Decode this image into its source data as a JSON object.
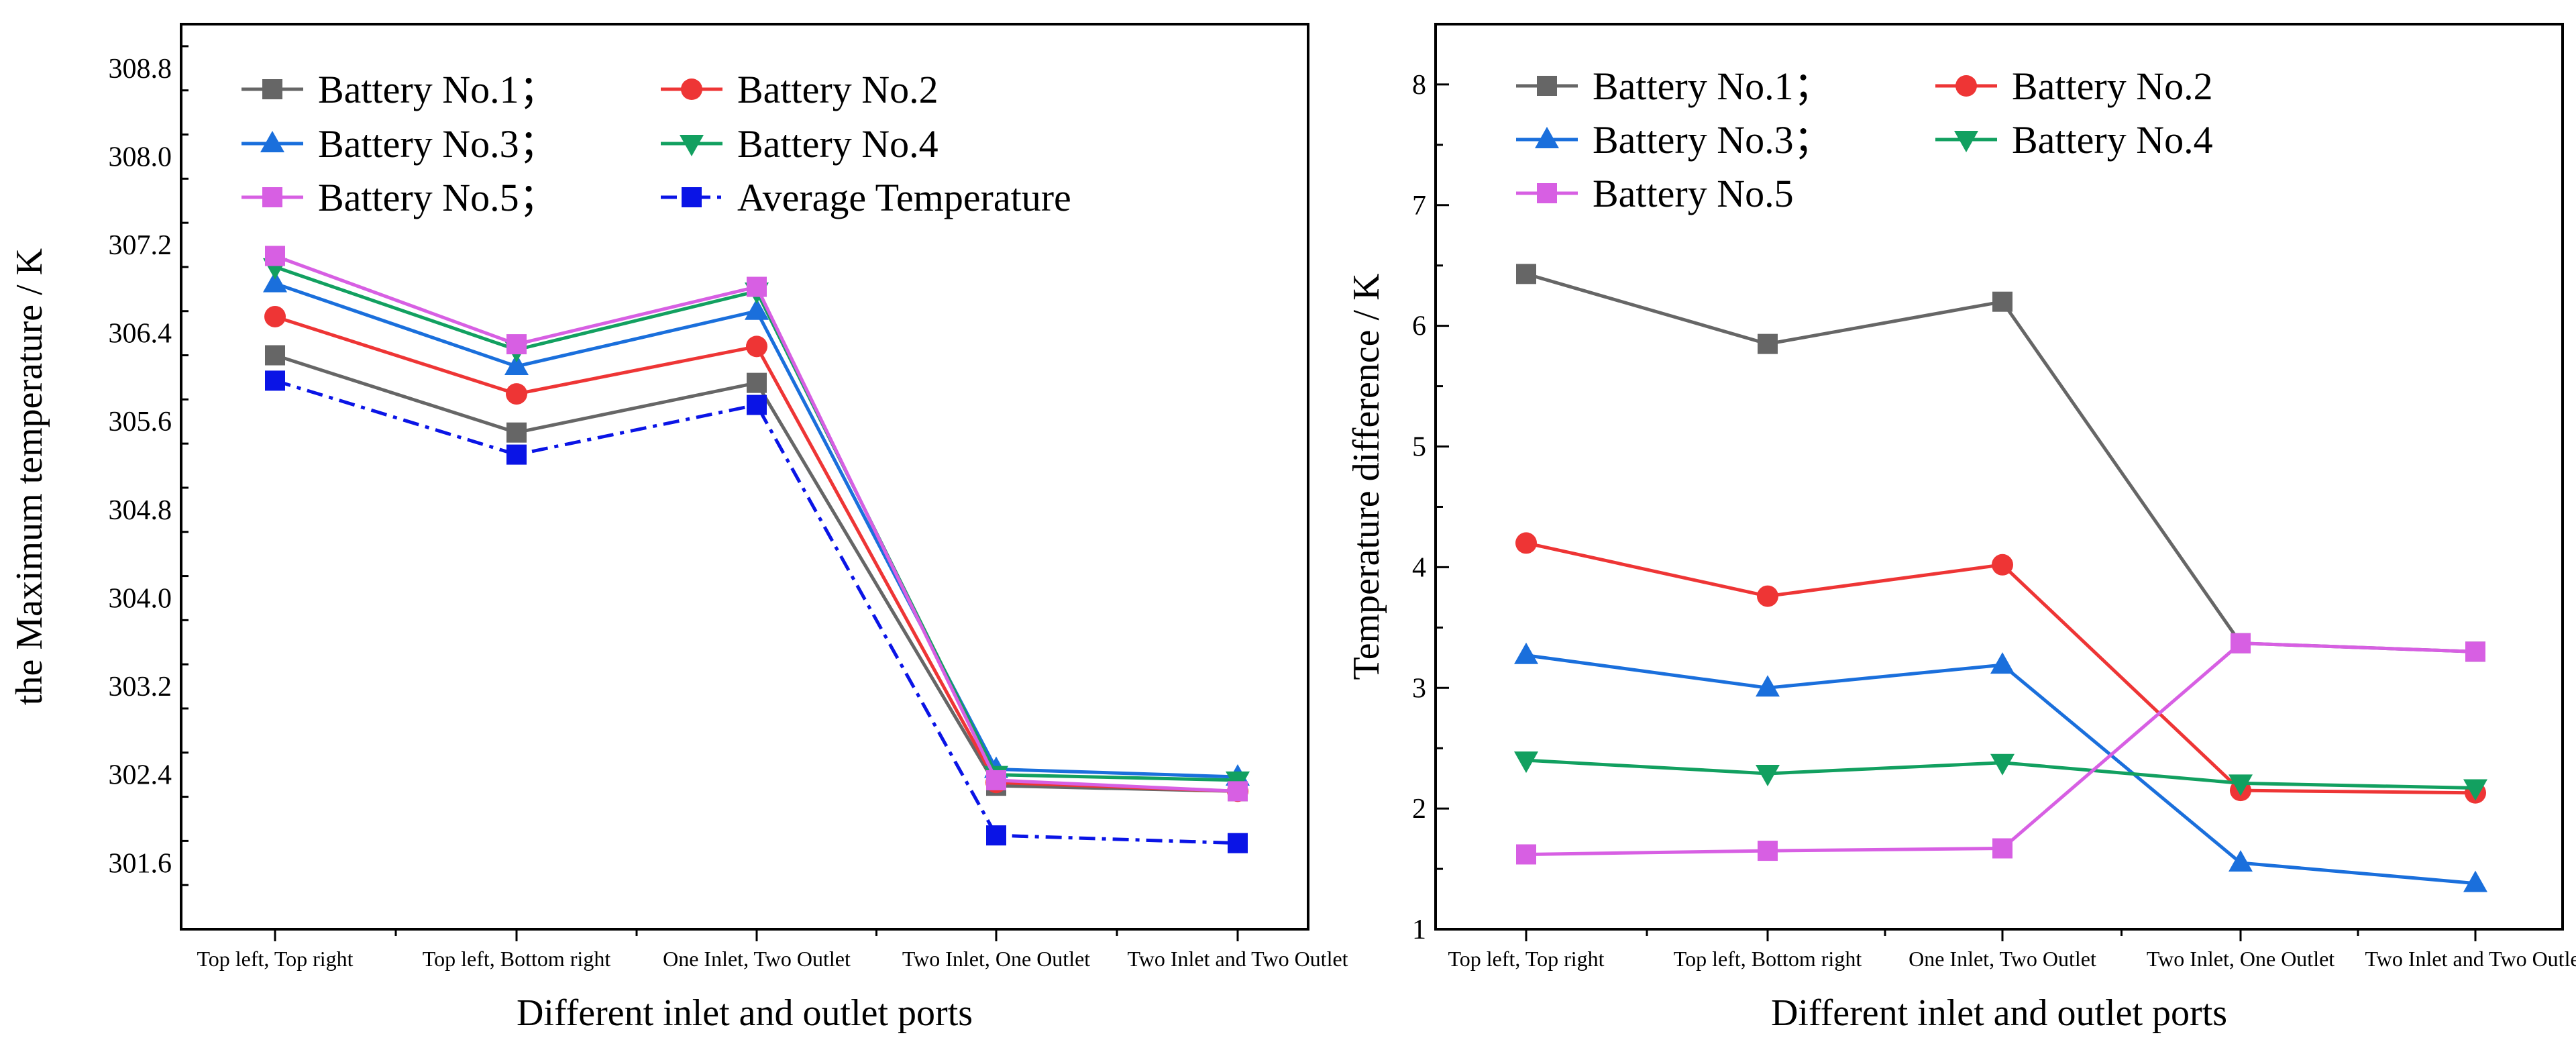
{
  "chart_data": [
    {
      "type": "line",
      "xlabel": "Different inlet and outlet ports",
      "ylabel": "the Maximum temperature / K",
      "categories": [
        "Top left, Top right",
        "Top left, Bottom right",
        "One Inlet, Two Outlet",
        "Two Inlet, One Outlet",
        "Two Inlet and Two Outlet"
      ],
      "ylim": [
        301.0,
        309.2
      ],
      "yticks": [
        301.6,
        302.4,
        303.2,
        304.0,
        304.8,
        305.6,
        306.4,
        307.2,
        308.0,
        308.8
      ],
      "ytick_labels": [
        "301.6",
        "302.4",
        "303.2",
        "304.0",
        "304.8",
        "305.6",
        "306.4",
        "307.2",
        "308.0",
        "308.8"
      ],
      "series": [
        {
          "name": "Battery No.1；",
          "color": "#666666",
          "marker": "square",
          "dash": "solid",
          "values": [
            306.2,
            305.5,
            305.95,
            302.3,
            302.25
          ]
        },
        {
          "name": "Battery No.2",
          "color": "#ee3535",
          "marker": "circle",
          "dash": "solid",
          "values": [
            306.55,
            305.85,
            306.28,
            302.33,
            302.25
          ]
        },
        {
          "name": "Battery No.3；",
          "color": "#1a6fdc",
          "marker": "triangle-up",
          "dash": "solid",
          "values": [
            306.85,
            306.1,
            306.6,
            302.45,
            302.38
          ]
        },
        {
          "name": "Battery No.4",
          "color": "#12a060",
          "marker": "triangle-down",
          "dash": "solid",
          "values": [
            307.0,
            306.25,
            306.78,
            302.4,
            302.35
          ]
        },
        {
          "name": "Battery No.5；",
          "color": "#d75fe3",
          "marker": "square",
          "dash": "solid",
          "values": [
            307.1,
            306.3,
            306.82,
            302.35,
            302.25
          ]
        },
        {
          "name": "Average Temperature",
          "color": "#0a14e6",
          "marker": "square",
          "dash": "dashdot",
          "values": [
            305.97,
            305.3,
            305.75,
            301.85,
            301.78
          ]
        }
      ]
    },
    {
      "type": "line",
      "xlabel": "Different inlet and outlet ports",
      "ylabel": "Temperature difference  / K",
      "categories": [
        "Top left, Top right",
        "Top left, Bottom right",
        "One Inlet, Two Outlet",
        "Two Inlet, One Outlet",
        "Two Inlet and Two Outlet"
      ],
      "ylim": [
        1,
        8.5
      ],
      "yticks": [
        1,
        2,
        3,
        4,
        5,
        6,
        7,
        8
      ],
      "ytick_labels": [
        "1",
        "2",
        "3",
        "4",
        "5",
        "6",
        "7",
        "8"
      ],
      "series": [
        {
          "name": "Battery No.1；",
          "color": "#666666",
          "marker": "square",
          "dash": "solid",
          "values": [
            6.43,
            5.85,
            6.2,
            3.37,
            3.3
          ]
        },
        {
          "name": "Battery No.2",
          "color": "#ee3535",
          "marker": "circle",
          "dash": "solid",
          "values": [
            4.2,
            3.76,
            4.02,
            2.15,
            2.13
          ]
        },
        {
          "name": "Battery No.3；",
          "color": "#1a6fdc",
          "marker": "triangle-up",
          "dash": "solid",
          "values": [
            3.27,
            3.0,
            3.19,
            1.55,
            1.38
          ]
        },
        {
          "name": "Battery No.4",
          "color": "#12a060",
          "marker": "triangle-down",
          "dash": "solid",
          "values": [
            2.4,
            2.29,
            2.38,
            2.21,
            2.17
          ]
        },
        {
          "name": "Battery No.5",
          "color": "#d75fe3",
          "marker": "square",
          "dash": "solid",
          "values": [
            1.62,
            1.65,
            1.67,
            3.37,
            3.3
          ]
        }
      ]
    }
  ]
}
